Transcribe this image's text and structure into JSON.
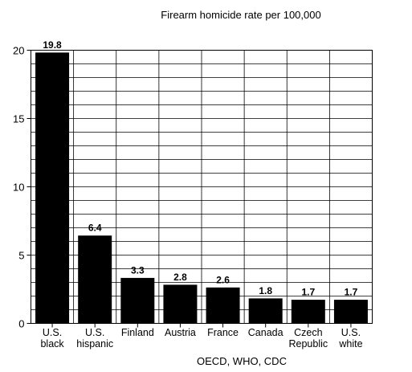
{
  "chart_data": {
    "type": "bar",
    "title": "Firearm homicide rate per 100,000",
    "source": "OECD, WHO, CDC",
    "xlabel": "",
    "ylabel": "",
    "ylim": [
      0,
      20
    ],
    "yticks": [
      0,
      5,
      10,
      15,
      20
    ],
    "grid": true,
    "categories": [
      [
        "U.S.",
        "black"
      ],
      [
        "U.S.",
        "hispanic"
      ],
      [
        "Finland"
      ],
      [
        "Austria"
      ],
      [
        "France"
      ],
      [
        "Canada"
      ],
      [
        "Czech",
        "Republic"
      ],
      [
        "U.S.",
        "white"
      ]
    ],
    "values": [
      19.8,
      6.4,
      3.3,
      2.8,
      2.6,
      1.8,
      1.7,
      1.7
    ],
    "data_labels": [
      "19.8",
      "6.4",
      "3.3",
      "2.8",
      "2.6",
      "1.8",
      "1.7",
      "1.7"
    ],
    "colors": {
      "bar": "#000000",
      "grid": "#000000",
      "background": "#ffffff"
    }
  }
}
